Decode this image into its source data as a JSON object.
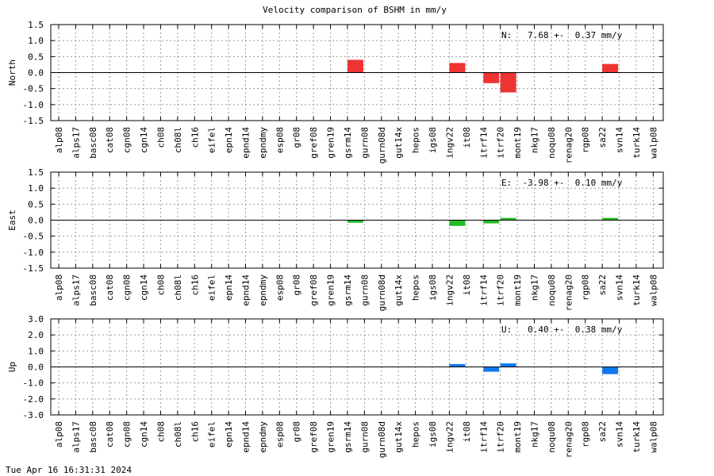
{
  "chart_data": {
    "type": "bar",
    "title": "Velocity comparison of BSHM in mm/y",
    "categories": [
      "alp08",
      "alps17",
      "basc08",
      "cat08",
      "cgn08",
      "cgn14",
      "ch08",
      "ch08l",
      "ch16",
      "eifel",
      "epn14",
      "epnd14",
      "epndmy",
      "esp08",
      "gr08",
      "gref08",
      "gren19",
      "gsrm14",
      "gurn08",
      "gurn08d",
      "gut14x",
      "hepos",
      "igs08",
      "ingv22",
      "it08",
      "itrf14",
      "itrf20",
      "mont19",
      "nkg17",
      "noqu08",
      "renag20",
      "rgp08",
      "sa22",
      "svn14",
      "turk14",
      "walp08"
    ],
    "grid": true,
    "panels": [
      {
        "ylabel": "North",
        "ylim": [
          -1.5,
          1.5
        ],
        "yticks": [
          "-1.5",
          "-1.0",
          "-0.5",
          "0.0",
          "0.5",
          "1.0",
          "1.5"
        ],
        "ytick_values": [
          -1.5,
          -1.0,
          -0.5,
          0.0,
          0.5,
          1.0,
          1.5
        ],
        "color": "#ee3333",
        "annotation": "N:   7.68 +-  0.37 mm/y",
        "values": {
          "gsrm14": 0.4,
          "ingv22": 0.3,
          "itrf14": -0.33,
          "itrf20": -0.62,
          "sa22": 0.27
        }
      },
      {
        "ylabel": "East",
        "ylim": [
          -1.5,
          1.5
        ],
        "yticks": [
          "-1.5",
          "-1.0",
          "-0.5",
          "0.0",
          "0.5",
          "1.0",
          "1.5"
        ],
        "ytick_values": [
          -1.5,
          -1.0,
          -0.5,
          0.0,
          0.5,
          1.0,
          1.5
        ],
        "color": "#22bb22",
        "annotation": "E:  -3.98 +-  0.10 mm/y",
        "values": {
          "gsrm14": -0.08,
          "ingv22": -0.18,
          "itrf14": -0.1,
          "itrf20": 0.07,
          "sa22": 0.07
        }
      },
      {
        "ylabel": "Up",
        "ylim": [
          -3.0,
          3.0
        ],
        "yticks": [
          "-3.0",
          "-2.0",
          "-1.0",
          "0.0",
          "1.0",
          "2.0",
          "3.0"
        ],
        "ytick_values": [
          -3.0,
          -2.0,
          -1.0,
          0.0,
          1.0,
          2.0,
          3.0
        ],
        "color": "#1177ee",
        "annotation": "U:   0.40 +-  0.38 mm/y",
        "values": {
          "ingv22": 0.18,
          "itrf14": -0.3,
          "itrf20": 0.22,
          "sa22": -0.45
        }
      }
    ]
  },
  "footer": {
    "timestamp": "Tue Apr 16 16:31:31 2024"
  }
}
